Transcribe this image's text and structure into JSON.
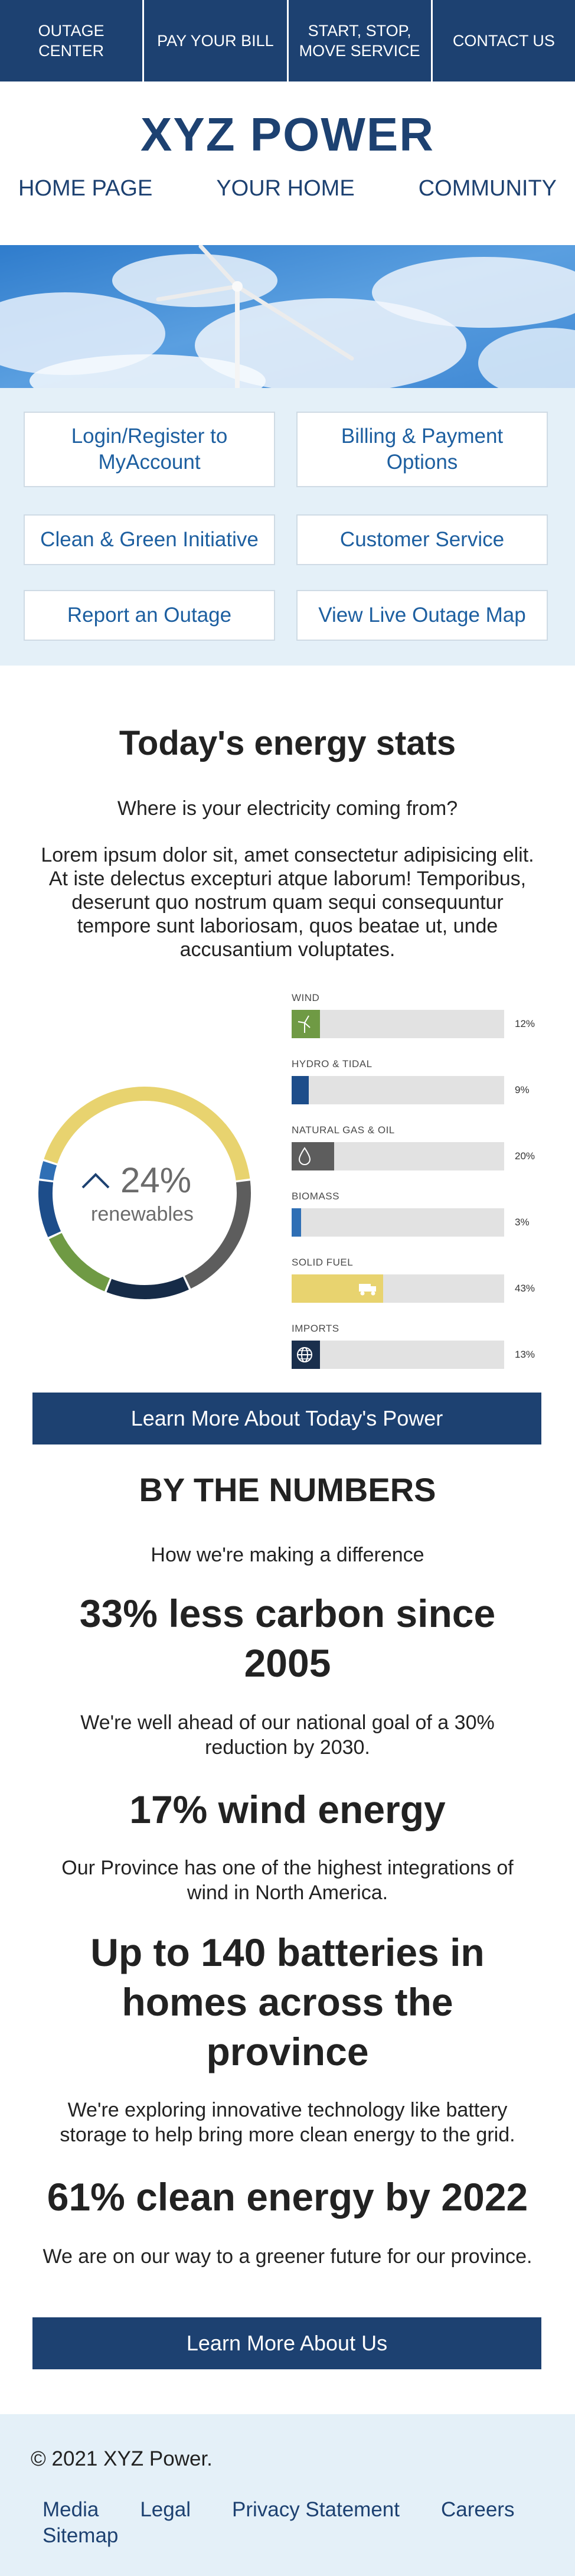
{
  "topnav": [
    "OUTAGE CENTER",
    "PAY YOUR BILL",
    "START, STOP, MOVE SERVICE",
    "CONTACT US"
  ],
  "brand": "XYZ POWER",
  "mainnav": [
    "HOME PAGE",
    "YOUR HOME",
    "COMMUNITY"
  ],
  "quick_links": [
    "Login/Register to MyAccount",
    "Billing & Payment Options",
    "Clean & Green Initiative",
    "Customer Service",
    "Report an Outage",
    "View Live Outage Map"
  ],
  "energy": {
    "title": "Today's energy stats",
    "subtitle": "Where is your electricity coming from?",
    "body": "Lorem ipsum dolor sit, amet consectetur adipisicing elit. At iste delectus excepturi atque laborum! Temporibus, deserunt quo nostrum quam sequi consequuntur tempore sunt laboriosam, quos beatae ut, unde accusantium voluptates.",
    "renewables_pct": "24%",
    "renewables_label": "renewables",
    "button": "Learn More About Today's Power"
  },
  "chart_data": {
    "type": "bar",
    "categories": [
      "WIND",
      "HYDRO & TIDAL",
      "NATURAL GAS & OIL",
      "BIOMASS",
      "SOLID FUEL",
      "IMPORTS"
    ],
    "values": [
      12,
      9,
      20,
      3,
      43,
      13
    ],
    "value_labels": [
      "12%",
      "9%",
      "20%",
      "3%",
      "43%",
      "13%"
    ],
    "colors": [
      "#6f9a44",
      "#1d4d8a",
      "#5d5d5d",
      "#2f6fb5",
      "#e8d36f",
      "#1a2f4d"
    ],
    "icons": [
      "wind-turbine-icon",
      "",
      "gas-drop-icon",
      "",
      "coal-truck-icon",
      "globe-icon"
    ],
    "donut_segments": [
      {
        "value": 43,
        "color": "#e8d36f"
      },
      {
        "value": 20,
        "color": "#5d5d5d"
      },
      {
        "value": 13,
        "color": "#162b47"
      },
      {
        "value": 12,
        "color": "#6f9a44"
      },
      {
        "value": 9,
        "color": "#1d4d8a"
      },
      {
        "value": 3,
        "color": "#2f6fb5"
      }
    ]
  },
  "numbers": {
    "title": "BY THE NUMBERS",
    "subtitle": "How we're making a difference",
    "items": [
      {
        "head": "33% less carbon since 2005",
        "text": "We're well ahead of our national goal of a 30% reduction by 2030."
      },
      {
        "head": "17% wind energy",
        "text": "Our Province has one of the highest integrations of wind in North America."
      },
      {
        "head": "Up to 140 batteries in homes across the province",
        "text": "We're exploring innovative technology like battery storage to help bring more clean energy to the grid."
      },
      {
        "head": "61% clean energy by 2022",
        "text": "We are on our way to a greener future for our province."
      }
    ],
    "button": "Learn More About Us"
  },
  "footer": {
    "copyright": "© 2021 XYZ Power.",
    "links": [
      "Media",
      "Legal",
      "Privacy Statement",
      "Careers",
      "Sitemap"
    ]
  }
}
